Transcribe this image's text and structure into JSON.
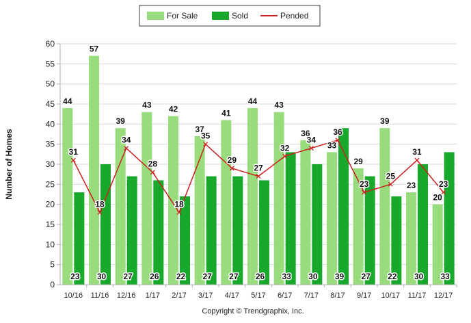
{
  "chart_data": {
    "type": "bar",
    "title": "",
    "xlabel": "",
    "ylabel": "Number of Homes",
    "ylim": [
      0,
      60
    ],
    "yticks": [
      0,
      5,
      10,
      15,
      20,
      25,
      30,
      35,
      40,
      45,
      50,
      55,
      60
    ],
    "grid": "horizontal",
    "legend_position": "top-center",
    "categories": [
      "10/16",
      "11/16",
      "12/16",
      "1/17",
      "2/17",
      "3/17",
      "4/17",
      "5/17",
      "6/17",
      "7/17",
      "8/17",
      "9/17",
      "10/17",
      "11/17",
      "12/17"
    ],
    "series": [
      {
        "name": "For Sale",
        "kind": "bar",
        "color": "#98dc7e",
        "values": [
          44,
          57,
          39,
          43,
          42,
          37,
          41,
          44,
          43,
          36,
          33,
          29,
          39,
          23,
          20
        ]
      },
      {
        "name": "Sold",
        "kind": "bar",
        "color": "#18a92c",
        "values": [
          23,
          30,
          27,
          26,
          22,
          27,
          27,
          26,
          33,
          30,
          39,
          27,
          22,
          30,
          33
        ]
      },
      {
        "name": "Pended",
        "kind": "line",
        "color": "#cc1f1f",
        "values": [
          31,
          18,
          34,
          28,
          18,
          35,
          29,
          27,
          32,
          34,
          36,
          23,
          25,
          31,
          23
        ]
      }
    ]
  },
  "footer": {
    "copyright": "Copyright © Trendgraphix, Inc."
  }
}
